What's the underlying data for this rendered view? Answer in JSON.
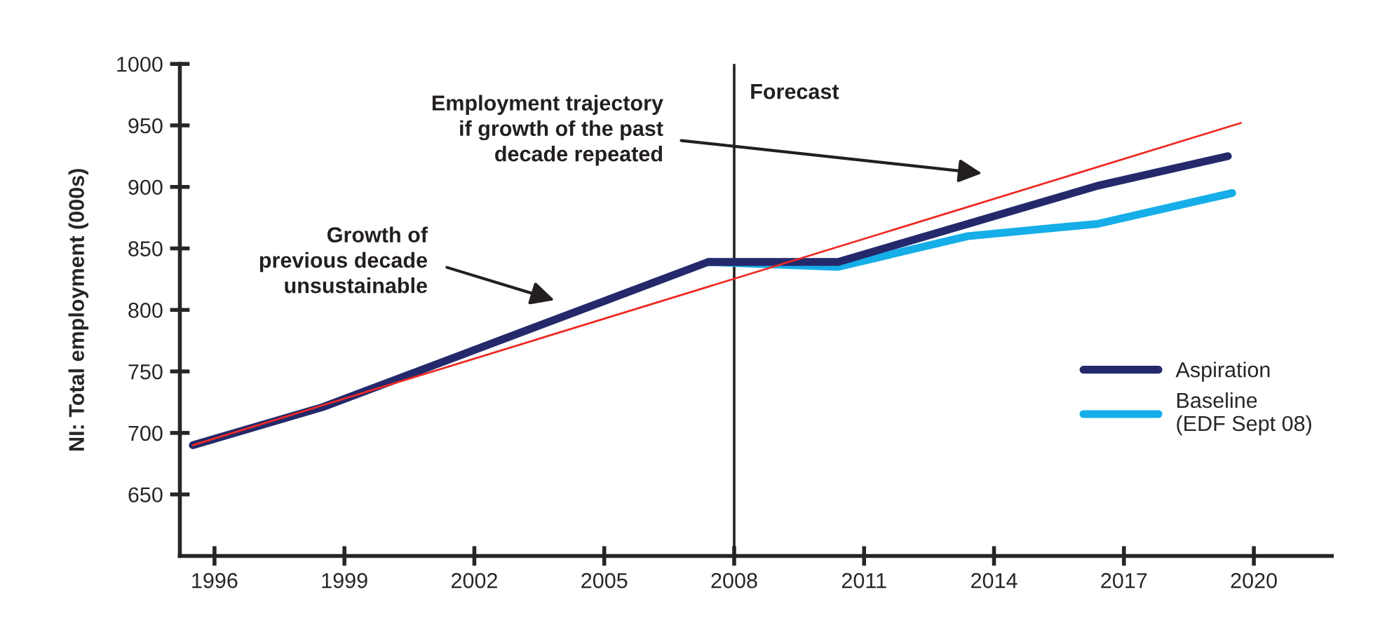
{
  "chart_data": {
    "type": "line",
    "ylabel": "NI: Total employment (000s)",
    "xlim": [
      1995.2,
      2021.8
    ],
    "ylim": [
      600,
      1000
    ],
    "xticks": [
      1996,
      1999,
      2002,
      2005,
      2008,
      2011,
      2014,
      2017,
      2020
    ],
    "yticks": [
      650,
      700,
      750,
      800,
      850,
      900,
      950,
      1000
    ],
    "series": [
      {
        "name": "Aspiration",
        "color": "#24296b",
        "x": [
          1995.5,
          1998.5,
          2007.4,
          2010.4,
          2016.4,
          2019.4
        ],
        "values": [
          690,
          721,
          839,
          839,
          901,
          925
        ]
      },
      {
        "name": "Baseline\n(EDF Sept 08)",
        "color": "#15aee8",
        "x": [
          2007.4,
          2010.4,
          2013.4,
          2016.4,
          2019.5
        ],
        "values": [
          839,
          835,
          860,
          870,
          895
        ]
      },
      {
        "color": "#ee2a24",
        "x": [
          1995.5,
          2019.7
        ],
        "values": [
          690,
          952
        ]
      }
    ],
    "ref_lines": [
      {
        "axis": "x",
        "value": 2008,
        "label": "Forecast",
        "color": "#231f20"
      }
    ],
    "annotations": [
      "Growth of\nprevious decade\nunsustainable",
      "Employment trajectory\nif growth of the past\ndecade repeated"
    ],
    "legend": "right",
    "grid": false,
    "marker": "none",
    "line_style": "solid"
  }
}
